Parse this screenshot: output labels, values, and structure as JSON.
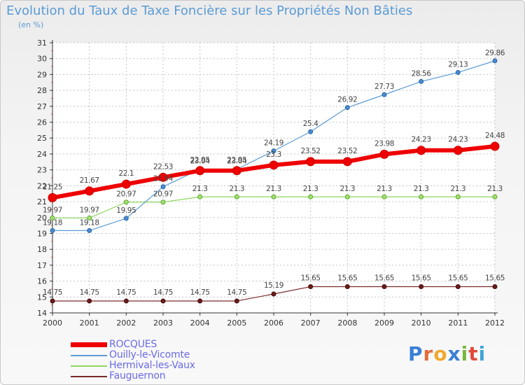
{
  "title": "Evolution du Taux de Taxe Foncière sur les Propriétés Non Bâties",
  "unit_label": "(en %)",
  "logo": {
    "text": "Proxiti",
    "letters": [
      "P",
      "r",
      "o",
      "x",
      "i",
      "t",
      "i"
    ],
    "colors": [
      "#3a7fd5",
      "#e26c3c",
      "#f0a830",
      "#3a7fd5",
      "#78b83c",
      "#e04b3b",
      "#3fa5d8"
    ]
  },
  "colors": {
    "rocques": "#ee0000",
    "ouilly": "#5b9bd5",
    "hermival": "#8ed85c",
    "fauguernon": "#7a2a2a",
    "grid": "#c4c4c4",
    "axis": "#333333"
  },
  "chart_data": {
    "type": "line",
    "title": "Evolution du Taux de Taxe Foncière sur les Propriétés Non Bâties",
    "ylabel": "(en %)",
    "x": [
      "2000",
      "2001",
      "2002",
      "2003",
      "2004",
      "2005",
      "2006",
      "2007",
      "2008",
      "2009",
      "2010",
      "2011",
      "2012"
    ],
    "ylim": [
      14,
      31
    ],
    "yticks": [
      "14",
      "15",
      "16",
      "17",
      "18",
      "19",
      "20",
      "21",
      "22",
      "23",
      "24",
      "25",
      "26",
      "27",
      "28",
      "29",
      "30",
      "31"
    ],
    "grid": true,
    "legend": "bottom-left",
    "series": [
      {
        "name": "ROCQUES",
        "key": "rocques",
        "values": [
          21.25,
          21.67,
          22.1,
          22.53,
          22.95,
          22.95,
          23.3,
          23.52,
          23.52,
          23.98,
          24.23,
          24.23,
          24.48
        ],
        "labels": [
          "21.25",
          "21.67",
          "22.1",
          "22.53",
          "22.95",
          "22.95",
          "23.3",
          "23.52",
          "23.52",
          "23.98",
          "24.23",
          "24.23",
          "24.48"
        ]
      },
      {
        "name": "Ouilly-le-Vicomte",
        "key": "ouilly",
        "values": [
          19.18,
          19.18,
          19.95,
          21.94,
          23.04,
          23.04,
          24.19,
          25.4,
          26.92,
          27.73,
          28.56,
          29.13,
          29.86
        ],
        "labels": [
          "19.18",
          "19.18",
          "19.95",
          "21.94",
          "23.04",
          "23.04",
          "24.19",
          "25.4",
          "26.92",
          "27.73",
          "28.56",
          "29.13",
          "29.86"
        ]
      },
      {
        "name": "Hermival-les-Vaux",
        "key": "hermival",
        "values": [
          19.97,
          19.97,
          20.97,
          20.97,
          21.3,
          21.3,
          21.3,
          21.3,
          21.3,
          21.3,
          21.3,
          21.3,
          21.3
        ],
        "labels": [
          "19.97",
          "19.97",
          "20.97",
          "20.97",
          "21.3",
          "21.3",
          "21.3",
          "21.3",
          "21.3",
          "21.3",
          "21.3",
          "21.3",
          "21.3"
        ]
      },
      {
        "name": "Fauguernon",
        "key": "fauguernon",
        "values": [
          14.75,
          14.75,
          14.75,
          14.75,
          14.75,
          14.75,
          15.19,
          15.65,
          15.65,
          15.65,
          15.65,
          15.65,
          15.65
        ],
        "labels": [
          "14.75",
          "14.75",
          "14.75",
          "14.75",
          "14.75",
          "14.75",
          "15.19",
          "15.65",
          "15.65",
          "15.65",
          "15.65",
          "15.65",
          "15.65"
        ]
      }
    ]
  }
}
